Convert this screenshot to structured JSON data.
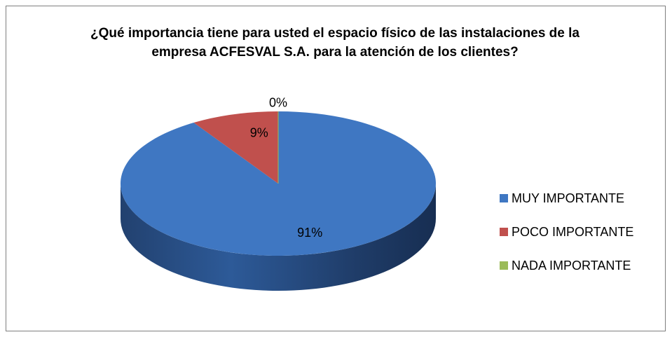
{
  "chart_data": {
    "type": "pie3d",
    "title": "¿Qué importancia tiene para usted el espacio físico de las instalaciones de la empresa ACFESVAL S.A. para la atención de los clientes?",
    "categories": [
      "MUY IMPORTANTE",
      "POCO IMPORTANTE",
      "NADA IMPORTANTE"
    ],
    "values": [
      91,
      9,
      0
    ],
    "value_labels": [
      "91%",
      "9%",
      "0%"
    ],
    "colors": [
      "#3f77c2",
      "#c0504d",
      "#9bbb59"
    ],
    "legend": "right"
  }
}
